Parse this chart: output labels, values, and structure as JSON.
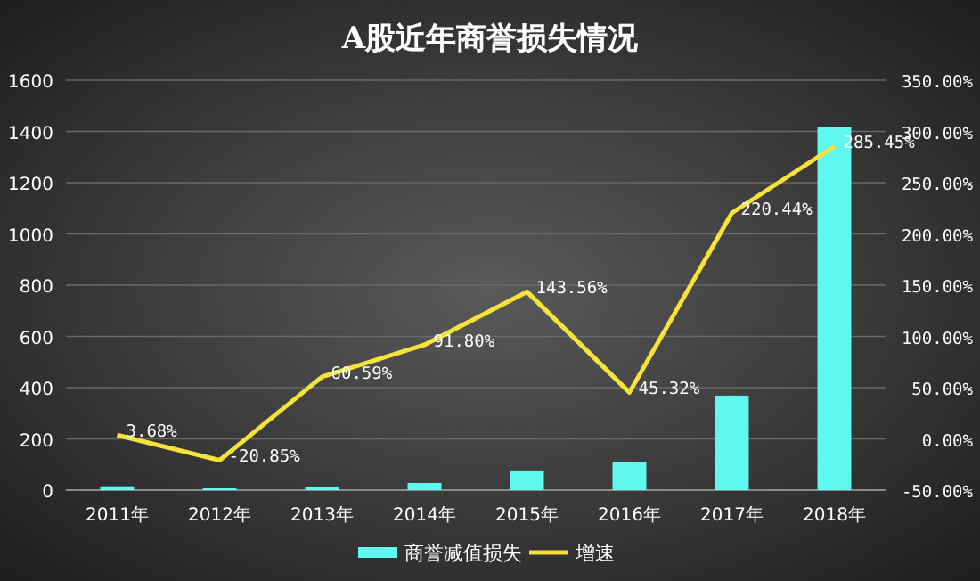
{
  "chart_data": {
    "type": "bar",
    "title": "A股近年商誉损失情况",
    "categories": [
      "2011年",
      "2012年",
      "2013年",
      "2014年",
      "2015年",
      "2016年",
      "2017年",
      "2018年"
    ],
    "series": [
      {
        "name": "商誉减值损失",
        "type": "bar",
        "color": "#5ff7ee",
        "values": [
          15,
          7,
          14,
          28,
          77,
          111,
          369,
          1419
        ]
      },
      {
        "name": "增速",
        "type": "line",
        "axis": "y2",
        "color": "#f5e33a",
        "values": [
          3.68,
          -20.85,
          60.59,
          91.8,
          143.56,
          45.32,
          220.44,
          285.45
        ],
        "value_labels": [
          "3.68%",
          "-20.85%",
          "60.59%",
          "91.80%",
          "143.56%",
          "45.32%",
          "220.44%",
          "285.45%"
        ]
      }
    ],
    "ylim": [
      0,
      1600
    ],
    "yticks": [
      0,
      200,
      400,
      600,
      800,
      1000,
      1200,
      1400,
      1600
    ],
    "y2lim": [
      -50,
      350
    ],
    "y2ticks": [
      {
        "value": -50,
        "label": "-50.00%"
      },
      {
        "value": 0,
        "label": "0.00%"
      },
      {
        "value": 50,
        "label": "50.00%"
      },
      {
        "value": 100,
        "label": "100.00%"
      },
      {
        "value": 150,
        "label": "150.00%"
      },
      {
        "value": 200,
        "label": "200.00%"
      },
      {
        "value": 250,
        "label": "250.00%"
      },
      {
        "value": 300,
        "label": "300.00%"
      },
      {
        "value": 350,
        "label": "350.00%"
      }
    ],
    "grid": "y",
    "legend": "bottom"
  }
}
